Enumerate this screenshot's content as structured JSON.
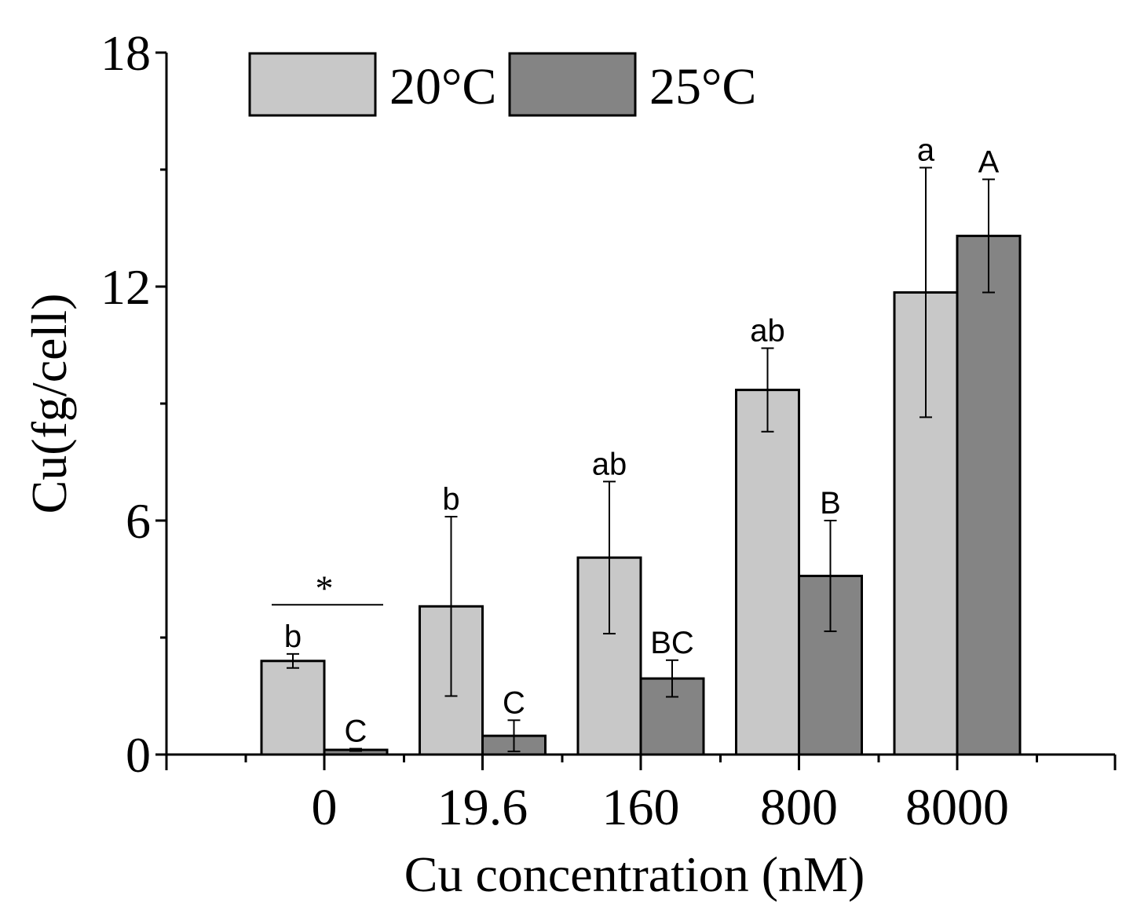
{
  "chart_data": {
    "type": "bar",
    "title": "",
    "xlabel": "Cu concentration (nM)",
    "ylabel": "Cu(fg/cell)",
    "ylim": [
      0,
      18
    ],
    "yticks": [
      0,
      6,
      12,
      18
    ],
    "categories": [
      "0",
      "19.6",
      "160",
      "800",
      "8000"
    ],
    "grid": false,
    "legend_position": "top-left",
    "series": [
      {
        "name": "20°C",
        "color": "#c8c8c8",
        "values": [
          2.4,
          3.8,
          5.05,
          9.35,
          11.85
        ],
        "errors": [
          0.18,
          2.3,
          1.95,
          1.07,
          3.2
        ],
        "labels": [
          "b",
          "b",
          "ab",
          "ab",
          "a"
        ]
      },
      {
        "name": "25°C",
        "color": "#848484",
        "values": [
          0.12,
          0.48,
          1.95,
          4.58,
          13.3
        ],
        "errors": [
          0.03,
          0.4,
          0.47,
          1.42,
          1.45
        ],
        "labels": [
          "C",
          "C",
          "BC",
          "B",
          "A"
        ]
      }
    ],
    "annotations": [
      {
        "text": "*",
        "category": "0",
        "type": "significance-bracket",
        "y": 3.84
      }
    ]
  }
}
